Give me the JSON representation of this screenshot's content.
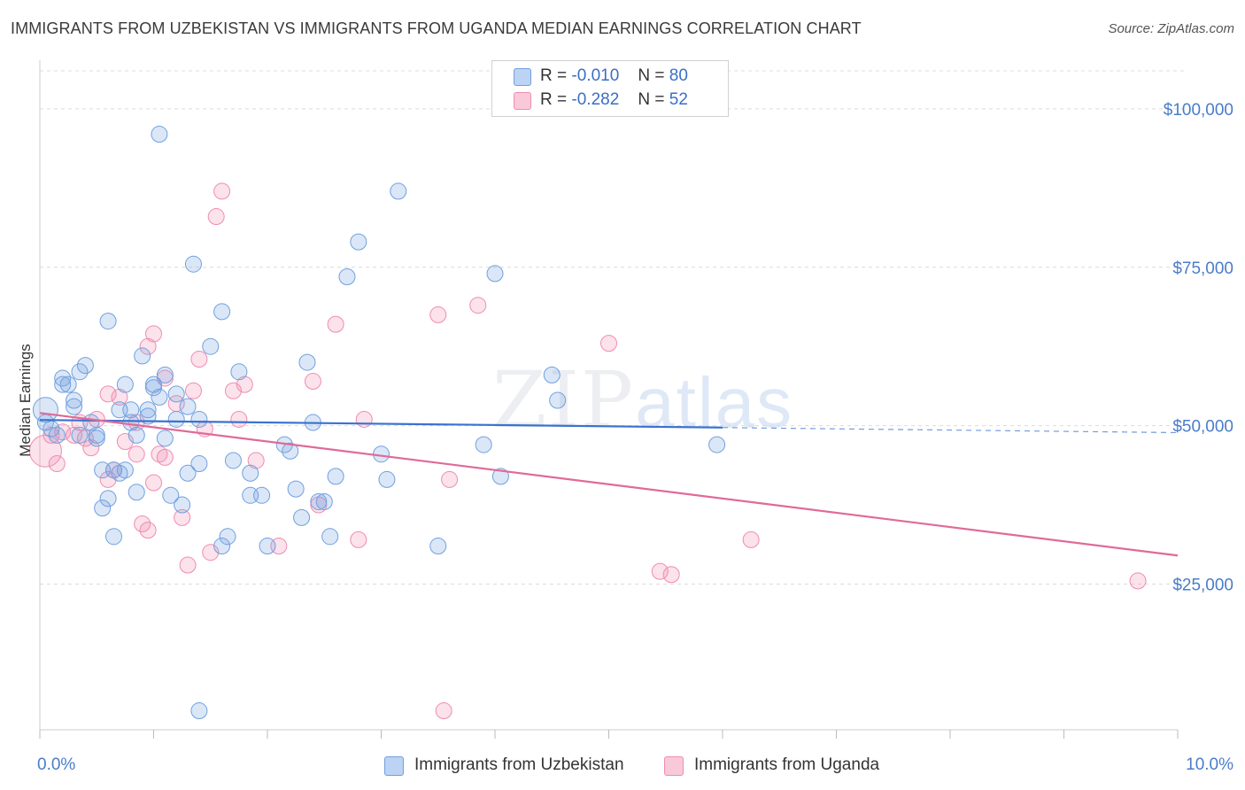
{
  "title": "IMMIGRANTS FROM UZBEKISTAN VS IMMIGRANTS FROM UGANDA MEDIAN EARNINGS CORRELATION CHART",
  "source": "Source: ZipAtlas.com",
  "watermark": {
    "zip": "ZIP",
    "atlas": "atlas"
  },
  "legend": {
    "uzbekistan": {
      "r_label": "R =",
      "r_value": "-0.010",
      "n_label": "N =",
      "n_value": "80"
    },
    "uganda": {
      "r_label": "R =",
      "r_value": "-0.282",
      "n_label": "N =",
      "n_value": "52"
    }
  },
  "bottom_legend": {
    "uzbekistan": "Immigrants from Uzbekistan",
    "uganda": "Immigrants from Uganda"
  },
  "colors": {
    "uzbekistan": "#6fa0e0",
    "uganda": "#f08cb0",
    "uzbekistan_line": "#3b72cf",
    "uganda_line": "#e06a98",
    "tick": "#4a7cc9"
  },
  "chart_data": {
    "type": "scatter",
    "title": "IMMIGRANTS FROM UZBEKISTAN VS IMMIGRANTS FROM UGANDA MEDIAN EARNINGS CORRELATION CHART",
    "xlabel": "",
    "ylabel": "Median Earnings",
    "xlim": [
      0,
      10
    ],
    "ylim": [
      2000,
      106000
    ],
    "x_tick_labels": [
      "0.0%",
      "10.0%"
    ],
    "y_ticks": [
      25000,
      50000,
      75000,
      100000
    ],
    "y_tick_labels": [
      "$25,000",
      "$50,000",
      "$75,000",
      "$100,000"
    ],
    "grid": true,
    "series": [
      {
        "name": "Immigrants from Uzbekistan",
        "trend": {
          "x0": 0,
          "y0": 50900,
          "x1": 6,
          "y1": 49700,
          "dashed_to_x": 10
        },
        "points": [
          [
            0.05,
            52500
          ],
          [
            0.05,
            50500
          ],
          [
            0.1,
            49500
          ],
          [
            0.15,
            48500
          ],
          [
            0.2,
            56500
          ],
          [
            0.2,
            57500
          ],
          [
            0.25,
            56500
          ],
          [
            0.3,
            54000
          ],
          [
            0.3,
            53000
          ],
          [
            0.35,
            48500
          ],
          [
            0.35,
            58500
          ],
          [
            0.4,
            59500
          ],
          [
            0.45,
            50500
          ],
          [
            0.5,
            48000
          ],
          [
            0.5,
            48500
          ],
          [
            0.55,
            43000
          ],
          [
            0.55,
            37000
          ],
          [
            0.6,
            66500
          ],
          [
            0.6,
            38500
          ],
          [
            0.65,
            32500
          ],
          [
            0.65,
            43000
          ],
          [
            0.7,
            52500
          ],
          [
            0.7,
            42500
          ],
          [
            0.75,
            56500
          ],
          [
            0.75,
            43000
          ],
          [
            0.8,
            52500
          ],
          [
            0.8,
            50500
          ],
          [
            0.85,
            48500
          ],
          [
            0.85,
            39500
          ],
          [
            0.9,
            61000
          ],
          [
            0.95,
            51500
          ],
          [
            0.95,
            52500
          ],
          [
            1.0,
            56500
          ],
          [
            1.0,
            56000
          ],
          [
            1.05,
            54500
          ],
          [
            1.05,
            96000
          ],
          [
            1.1,
            48000
          ],
          [
            1.1,
            58000
          ],
          [
            1.15,
            39000
          ],
          [
            1.2,
            55000
          ],
          [
            1.2,
            51000
          ],
          [
            1.25,
            37500
          ],
          [
            1.3,
            53000
          ],
          [
            1.3,
            42500
          ],
          [
            1.35,
            75500
          ],
          [
            1.4,
            51000
          ],
          [
            1.4,
            44000
          ],
          [
            1.4,
            5000
          ],
          [
            1.5,
            62500
          ],
          [
            1.6,
            68000
          ],
          [
            1.6,
            31000
          ],
          [
            1.65,
            32500
          ],
          [
            1.7,
            44500
          ],
          [
            1.75,
            58500
          ],
          [
            1.85,
            42500
          ],
          [
            1.85,
            39000
          ],
          [
            1.95,
            39000
          ],
          [
            2.0,
            31000
          ],
          [
            2.15,
            47000
          ],
          [
            2.2,
            46000
          ],
          [
            2.25,
            40000
          ],
          [
            2.3,
            35500
          ],
          [
            2.35,
            60000
          ],
          [
            2.4,
            50500
          ],
          [
            2.45,
            38000
          ],
          [
            2.5,
            38000
          ],
          [
            2.55,
            32500
          ],
          [
            2.6,
            42000
          ],
          [
            2.7,
            73500
          ],
          [
            2.8,
            79000
          ],
          [
            3.0,
            45500
          ],
          [
            3.05,
            41500
          ],
          [
            3.15,
            87000
          ],
          [
            3.5,
            31000
          ],
          [
            3.9,
            47000
          ],
          [
            4.0,
            74000
          ],
          [
            4.05,
            42000
          ],
          [
            4.5,
            58000
          ],
          [
            4.55,
            54000
          ],
          [
            5.95,
            47000
          ]
        ]
      },
      {
        "name": "Immigrants from Uganda",
        "trend": {
          "x0": 0,
          "y0": 52000,
          "x1": 10,
          "y1": 29500
        },
        "points": [
          [
            0.05,
            46000
          ],
          [
            0.1,
            48500
          ],
          [
            0.2,
            49000
          ],
          [
            0.3,
            48500
          ],
          [
            0.35,
            50500
          ],
          [
            0.4,
            48000
          ],
          [
            0.45,
            46500
          ],
          [
            0.5,
            51000
          ],
          [
            0.6,
            55000
          ],
          [
            0.6,
            41500
          ],
          [
            0.65,
            43000
          ],
          [
            0.7,
            54500
          ],
          [
            0.75,
            47500
          ],
          [
            0.85,
            45500
          ],
          [
            0.85,
            50500
          ],
          [
            0.95,
            62500
          ],
          [
            0.95,
            33500
          ],
          [
            0.9,
            34500
          ],
          [
            1.0,
            64500
          ],
          [
            1.0,
            41000
          ],
          [
            1.05,
            45500
          ],
          [
            1.1,
            57500
          ],
          [
            1.1,
            45000
          ],
          [
            1.2,
            53500
          ],
          [
            1.25,
            35500
          ],
          [
            1.3,
            28000
          ],
          [
            1.35,
            55500
          ],
          [
            1.4,
            60500
          ],
          [
            1.45,
            49500
          ],
          [
            1.5,
            30000
          ],
          [
            1.55,
            83000
          ],
          [
            1.6,
            87000
          ],
          [
            1.7,
            55500
          ],
          [
            1.75,
            51000
          ],
          [
            1.8,
            56500
          ],
          [
            1.9,
            44500
          ],
          [
            2.1,
            31000
          ],
          [
            2.4,
            57000
          ],
          [
            2.45,
            37500
          ],
          [
            2.6,
            66000
          ],
          [
            2.8,
            32000
          ],
          [
            2.85,
            51000
          ],
          [
            3.5,
            67500
          ],
          [
            3.6,
            41500
          ],
          [
            3.55,
            5000
          ],
          [
            3.85,
            69000
          ],
          [
            5.0,
            63000
          ],
          [
            5.45,
            27000
          ],
          [
            5.55,
            26500
          ],
          [
            6.25,
            32000
          ],
          [
            9.65,
            25500
          ],
          [
            0.15,
            44000
          ]
        ]
      }
    ]
  },
  "y_axis_title": "Median Earnings"
}
